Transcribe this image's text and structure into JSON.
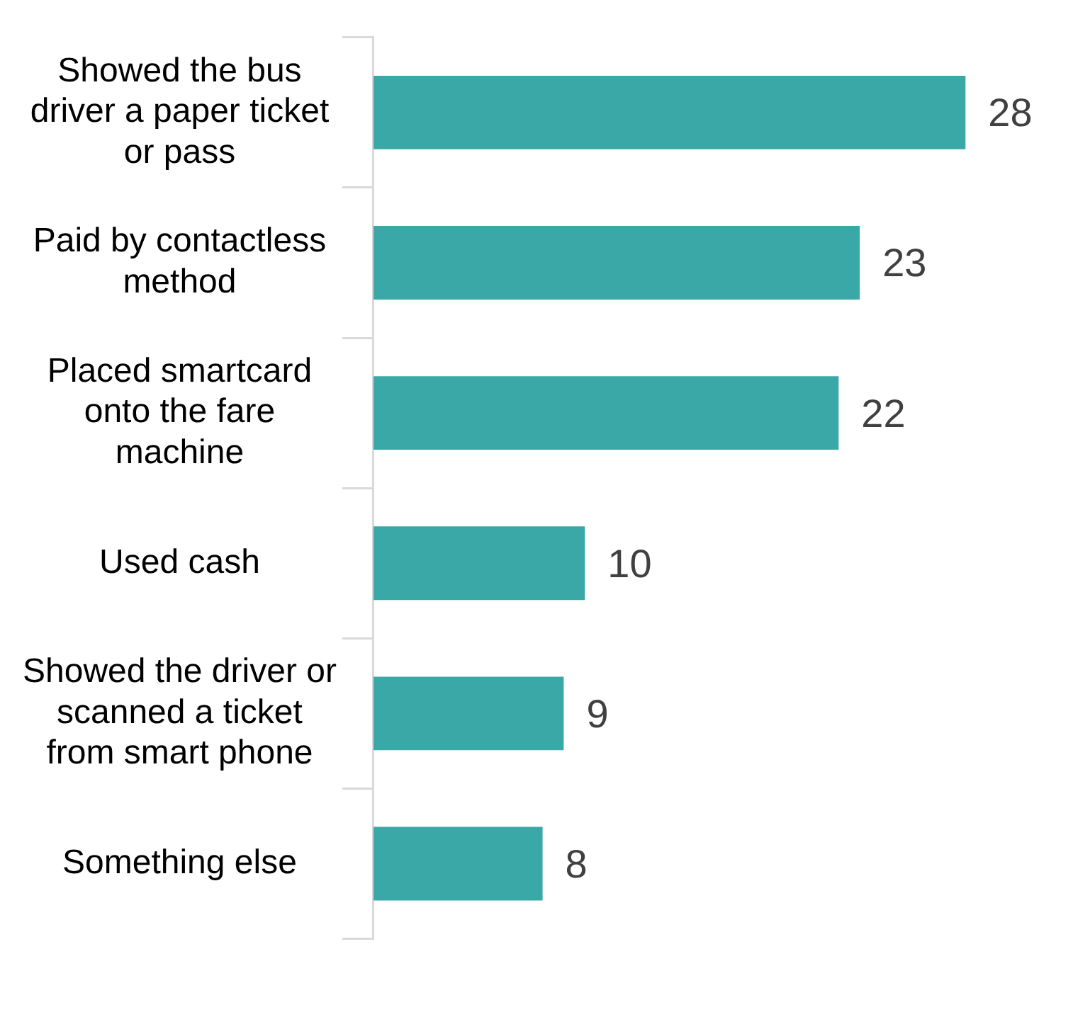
{
  "chart_data": {
    "type": "bar",
    "orientation": "horizontal",
    "categories": [
      "Showed the bus driver a paper ticket or pass",
      "Paid by contactless method",
      "Placed smartcard onto the fare machine",
      "Used cash",
      "Showed the driver or scanned a ticket from smart phone",
      "Something else"
    ],
    "values": [
      28,
      23,
      22,
      10,
      9,
      8
    ],
    "color": "#3ba8a8",
    "data_labels": true,
    "tick_labels": "y"
  }
}
